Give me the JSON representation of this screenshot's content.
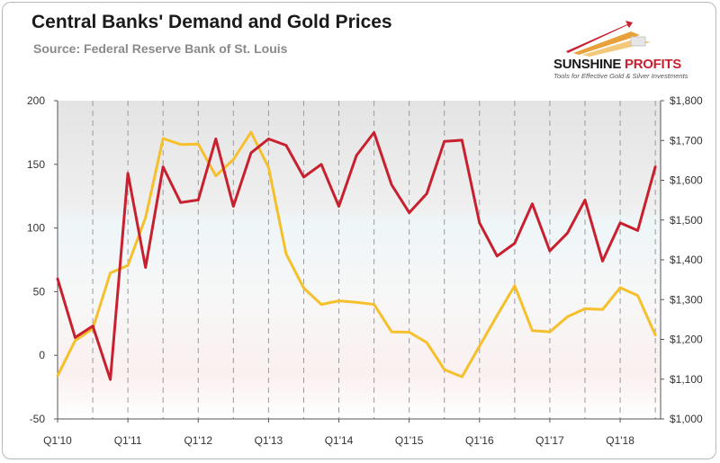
{
  "header": {
    "title": "Central Banks' Demand and Gold Prices",
    "subtitle": "Source: Federal Reserve Bank of St. Louis"
  },
  "logo": {
    "name_part1": "SUNSHINE",
    "name_part2": "PROFITS",
    "tagline": "Tools for Effective Gold & Silver Investments"
  },
  "colors": {
    "demand": "#c8202f",
    "gold_price": "#f5c02c",
    "grid": "#9a9a9a"
  },
  "chart_data": {
    "type": "line",
    "title": "Central Banks' Demand and Gold Prices",
    "x_tick_labels": [
      "Q1'10",
      "Q1'11",
      "Q1'12",
      "Q1'13",
      "Q1'14",
      "Q1'15",
      "Q1'16",
      "Q1'17",
      "Q1'18"
    ],
    "y_left": {
      "ylim": [
        -50,
        200
      ],
      "ticks": [
        "-50",
        "0",
        "50",
        "100",
        "150",
        "200"
      ]
    },
    "y_right": {
      "ylim": [
        1000,
        1800
      ],
      "ticks": [
        "$1,000",
        "$1,100",
        "$1,200",
        "$1,300",
        "$1,400",
        "$1,500",
        "$1,600",
        "$1,700",
        "$1,800"
      ]
    },
    "x_range": [
      0,
      34.3
    ],
    "grid": "vertical dashed",
    "series": [
      {
        "axis": "left",
        "x": [
          0,
          1,
          2,
          3,
          4,
          5,
          6,
          7,
          8,
          9,
          10,
          11,
          12,
          13,
          14,
          15,
          16,
          17,
          18,
          19,
          20,
          21,
          22,
          23,
          24,
          25,
          26,
          27,
          28,
          29,
          30,
          31,
          32,
          33,
          34
        ],
        "values": [
          60,
          14,
          23,
          -19,
          143,
          69,
          148,
          120,
          122,
          170,
          117,
          159,
          170,
          165,
          140,
          150,
          117,
          157,
          175,
          134,
          112,
          127,
          168,
          169,
          104,
          78,
          88,
          119,
          82,
          96,
          122,
          74,
          104,
          98,
          148
        ]
      },
      {
        "axis": "right",
        "x": [
          0,
          1,
          2,
          3,
          4,
          5,
          6,
          7,
          8,
          9,
          10,
          11,
          12,
          13,
          14,
          15,
          16,
          17,
          18,
          19,
          20,
          21,
          22,
          23,
          24,
          25,
          26,
          27,
          28,
          29,
          30,
          31,
          32,
          33,
          34
        ],
        "values": [
          1109,
          1197,
          1227,
          1367,
          1386,
          1506,
          1705,
          1690,
          1691,
          1611,
          1652,
          1721,
          1632,
          1415,
          1329,
          1288,
          1297,
          1293,
          1288,
          1219,
          1218,
          1192,
          1124,
          1106,
          1183,
          1260,
          1335,
          1222,
          1219,
          1257,
          1277,
          1275,
          1330,
          1310,
          1211
        ]
      }
    ]
  }
}
